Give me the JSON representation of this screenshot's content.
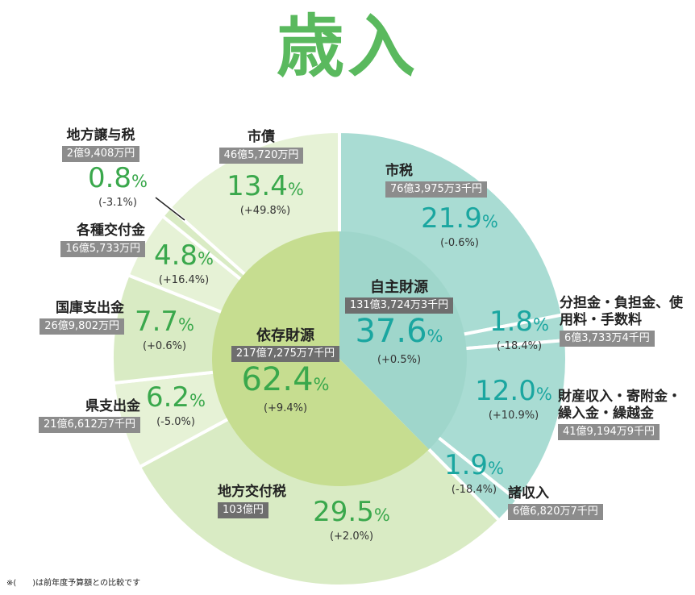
{
  "title": "歳入",
  "footnote": "※(　　)は前年度予算額との比較です",
  "chart_data": {
    "type": "pie",
    "title": "歳入",
    "outer": [
      {
        "name": "市税",
        "amount": "76億3,975万3千円",
        "percent": 21.9,
        "change": "(-0.6%)",
        "group": "自主財源"
      },
      {
        "name": "分担金・負担金、使用料・手数料",
        "amount": "6億3,733万4千円",
        "percent": 1.8,
        "change": "(-18.4%)",
        "group": "自主財源"
      },
      {
        "name": "財産収入・寄附金・繰入金・繰越金",
        "amount": "41億9,194万9千円",
        "percent": 12.0,
        "change": "(+10.9%)",
        "group": "自主財源"
      },
      {
        "name": "諸収入",
        "amount": "6億6,820万7千円",
        "percent": 1.9,
        "change": "(-18.4%)",
        "group": "自主財源"
      },
      {
        "name": "地方交付税",
        "amount": "103億円",
        "percent": 29.5,
        "change": "(+2.0%)",
        "group": "依存財源"
      },
      {
        "name": "県支出金",
        "amount": "21億6,612万7千円",
        "percent": 6.2,
        "change": "(-5.0%)",
        "group": "依存財源"
      },
      {
        "name": "国庫支出金",
        "amount": "26億9,802万円",
        "percent": 7.7,
        "change": "(+0.6%)",
        "group": "依存財源"
      },
      {
        "name": "各種交付金",
        "amount": "16億5,733万円",
        "percent": 4.8,
        "change": "(+16.4%)",
        "group": "依存財源"
      },
      {
        "name": "地方譲与税",
        "amount": "2億9,408万円",
        "percent": 0.8,
        "change": "(-3.1%)",
        "group": "依存財源"
      },
      {
        "name": "市債",
        "amount": "46億5,720万円",
        "percent": 13.4,
        "change": "(+49.8%)",
        "group": "依存財源"
      }
    ],
    "inner": [
      {
        "name": "自主財源",
        "amount": "131億3,724万3千円",
        "percent": 37.6,
        "change": "(+0.5%)"
      },
      {
        "name": "依存財源",
        "amount": "217億7,275万7千円",
        "percent": 62.4,
        "change": "(+9.4%)"
      }
    ],
    "percent_sign": "%",
    "colors": {
      "own_outer": "#a9dcd3",
      "own_inner": "#9fd6cb",
      "dep_outer_a": "#d9ebc4",
      "dep_outer_b": "#e6f2d6",
      "dep_inner": "#c6dd90",
      "title": "#5ab95e",
      "pct_green": "#3aa84c",
      "pct_teal": "#1aa6a0"
    }
  }
}
